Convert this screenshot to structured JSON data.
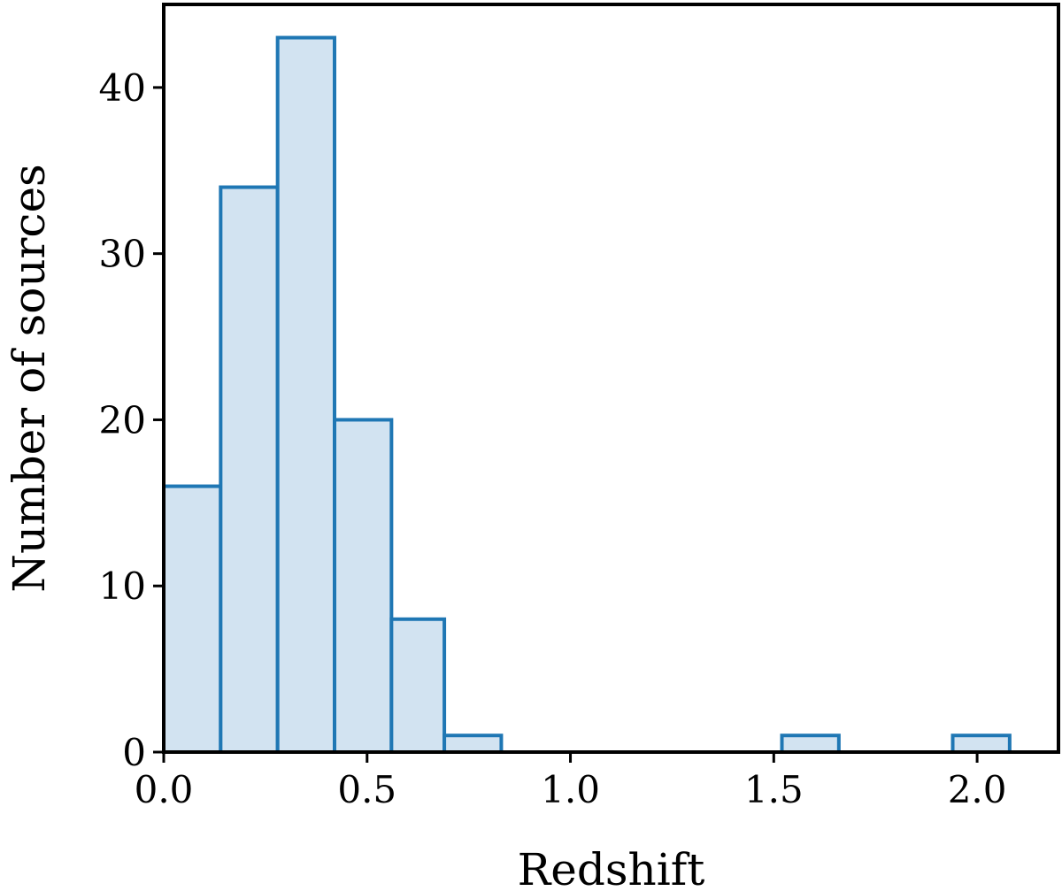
{
  "chart_data": {
    "type": "bar",
    "title": "",
    "xlabel": "Redshift",
    "ylabel": "Number of sources",
    "xlim": [
      0.0,
      2.2
    ],
    "ylim": [
      0,
      45
    ],
    "xticks": [
      0.0,
      0.5,
      1.0,
      1.5,
      2.0
    ],
    "xtick_labels": [
      "0.0",
      "0.5",
      "1.0",
      "1.5",
      "2.0"
    ],
    "yticks": [
      0,
      10,
      20,
      30,
      40
    ],
    "ytick_labels": [
      "0",
      "10",
      "20",
      "30",
      "40"
    ],
    "grid": false,
    "histogram": true,
    "bins": [
      {
        "x0": 0.0,
        "x1": 0.14,
        "count": 16
      },
      {
        "x0": 0.14,
        "x1": 0.28,
        "count": 34
      },
      {
        "x0": 0.28,
        "x1": 0.42,
        "count": 43
      },
      {
        "x0": 0.42,
        "x1": 0.56,
        "count": 20
      },
      {
        "x0": 0.56,
        "x1": 0.69,
        "count": 8
      },
      {
        "x0": 0.69,
        "x1": 0.83,
        "count": 1
      },
      {
        "x0": 1.52,
        "x1": 1.66,
        "count": 1
      },
      {
        "x0": 1.94,
        "x1": 2.08,
        "count": 1
      }
    ],
    "colors": {
      "edge": "#1f77b4",
      "fill": "#d2e3f1",
      "axis": "#000000"
    }
  }
}
